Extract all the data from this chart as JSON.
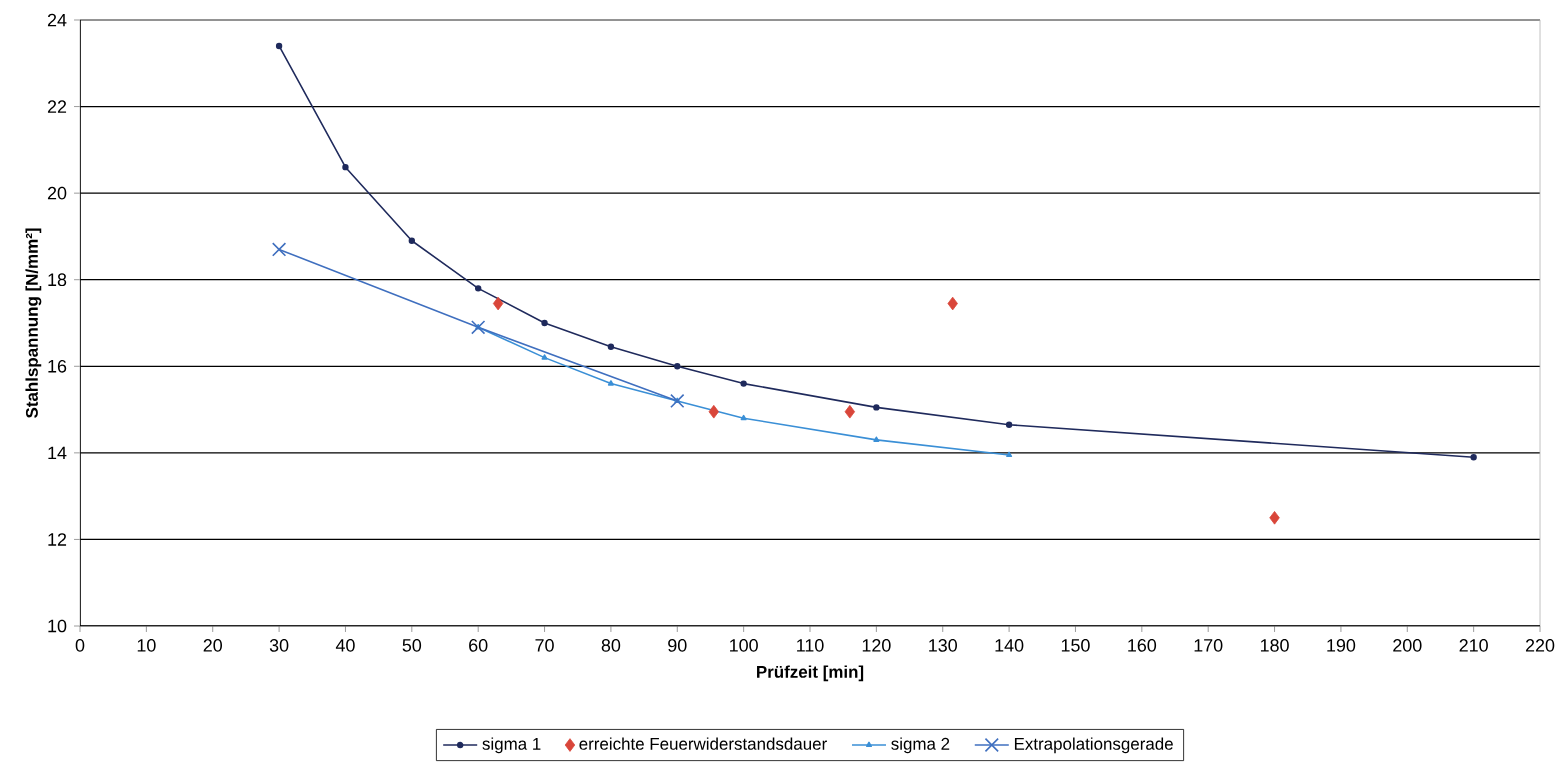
{
  "chart_data": {
    "type": "line",
    "xlabel": "Prüfzeit [min]",
    "ylabel": "Stahlspannung [N/mm²]",
    "xlim": [
      0,
      220
    ],
    "xticks": [
      0,
      10,
      20,
      30,
      40,
      50,
      60,
      70,
      80,
      90,
      100,
      110,
      120,
      130,
      140,
      150,
      160,
      170,
      180,
      190,
      200,
      210,
      220
    ],
    "ylim": [
      10,
      24
    ],
    "yticks": [
      10,
      12,
      14,
      16,
      18,
      20,
      22,
      24
    ],
    "grid": "y",
    "legend": "bottom",
    "series": [
      {
        "name": "sigma 1",
        "color": "#1f2a5c",
        "marker": "circle",
        "x": [
          30,
          40,
          50,
          60,
          70,
          80,
          90,
          100,
          120,
          140,
          210
        ],
        "values": [
          23.4,
          20.6,
          18.9,
          17.8,
          17.0,
          16.45,
          16.0,
          15.6,
          15.05,
          14.65,
          13.9
        ]
      },
      {
        "name": "erreichte Feuerwiderstandsdauer",
        "type": "scatter",
        "color": "#d9463a",
        "marker": "diamond",
        "x": [
          63,
          95.5,
          116,
          131.5,
          180
        ],
        "values": [
          17.45,
          14.95,
          14.95,
          17.45,
          12.5
        ]
      },
      {
        "name": "sigma 2",
        "color": "#3a8fd6",
        "marker": "triangle",
        "x": [
          60,
          70,
          80,
          90,
          100,
          120,
          140
        ],
        "values": [
          16.9,
          16.2,
          15.6,
          15.2,
          14.8,
          14.3,
          13.95
        ]
      },
      {
        "name": "Extrapolationsgerade",
        "color": "#3f6fbf",
        "marker": "cross",
        "x": [
          30,
          60,
          90
        ],
        "values": [
          18.7,
          16.9,
          15.2
        ]
      }
    ]
  }
}
